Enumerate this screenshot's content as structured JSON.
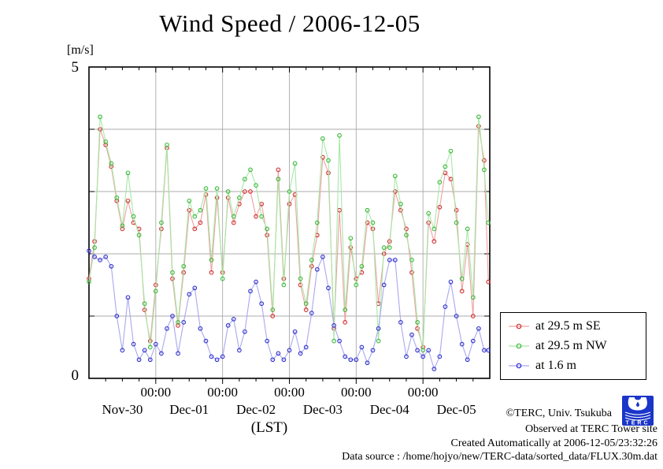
{
  "title": "Wind Speed / 2006-12-05",
  "y_axis": {
    "unit": "[m/s]",
    "max_label": "5",
    "min_label": "0"
  },
  "x_axis": {
    "time_tick_label": "00:00",
    "date_labels": [
      "Nov-30",
      "Dec-01",
      "Dec-02",
      "Dec-03",
      "Dec-04",
      "Dec-05"
    ],
    "axis_label": "(LST)"
  },
  "annotations": {
    "copyright": "©TERC, Univ. Tsukuba",
    "observed": "Observed at TERC Tower site",
    "created": "Created Automatically at 2006-12-05/23:32:26",
    "data_source": "Data source : /home/hojyo/new/TERC-data/sorted_data/FLUX.30m.dat",
    "logo_text": "TERC",
    "logo_color": "#1a35c8"
  },
  "chart_data": {
    "type": "line",
    "title": "Wind Speed / 2006-12-05",
    "ylabel": "[m/s]",
    "xlabel": "(LST)",
    "ylim": [
      0,
      5
    ],
    "xlim_hours": [
      0,
      144
    ],
    "x_epoch": "2006-11-30 00:00 LST",
    "grid": true,
    "grid_color": "#ababab",
    "legend_position": "outside-right-bottom",
    "y_gridlines": [
      1,
      2,
      3,
      4
    ],
    "y_tick_labels_shown": [
      "0",
      "5"
    ],
    "x_major_ticks_hours": [
      24,
      48,
      72,
      96,
      120
    ],
    "x_minor_tick_interval_hours": 6,
    "x_major_tick_text": "00:00",
    "date_label_noon_hours": [
      12,
      36,
      60,
      84,
      108,
      132
    ],
    "x": [
      0,
      2,
      4,
      6,
      8,
      10,
      12,
      14,
      16,
      18,
      20,
      22,
      24,
      26,
      28,
      30,
      32,
      34,
      36,
      38,
      40,
      42,
      44,
      46,
      48,
      50,
      52,
      54,
      56,
      58,
      60,
      62,
      64,
      66,
      68,
      70,
      72,
      74,
      76,
      78,
      80,
      82,
      84,
      86,
      88,
      90,
      92,
      94,
      96,
      98,
      100,
      102,
      104,
      106,
      108,
      110,
      112,
      114,
      116,
      118,
      120,
      122,
      124,
      126,
      128,
      130,
      132,
      134,
      136,
      138,
      140,
      142,
      143.5
    ],
    "series": [
      {
        "name": "at 29.5 m SE",
        "color_line": "#f0a0a0",
        "color_marker": "#d03030",
        "values": [
          1.6,
          2.2,
          4.0,
          3.75,
          3.4,
          2.85,
          2.4,
          2.85,
          2.5,
          2.4,
          1.1,
          0.6,
          1.5,
          2.4,
          3.7,
          1.6,
          0.85,
          1.7,
          2.7,
          2.4,
          2.5,
          2.95,
          1.7,
          2.9,
          1.7,
          2.9,
          2.5,
          2.8,
          3.0,
          3.0,
          2.6,
          2.8,
          2.3,
          1.0,
          3.35,
          1.6,
          2.8,
          2.95,
          1.5,
          1.1,
          1.8,
          2.3,
          3.55,
          3.3,
          0.8,
          2.7,
          0.9,
          2.1,
          1.6,
          1.7,
          2.5,
          2.4,
          1.2,
          2.0,
          2.2,
          3.0,
          2.7,
          2.4,
          1.7,
          0.8,
          0.5,
          2.5,
          2.2,
          2.75,
          3.3,
          3.2,
          2.7,
          1.4,
          2.15,
          1.0,
          4.05,
          3.5,
          1.55
        ]
      },
      {
        "name": "at 29.5 m NW",
        "color_line": "#a6e8a6",
        "color_marker": "#3cb83c",
        "values": [
          1.55,
          2.1,
          4.2,
          3.8,
          3.45,
          2.9,
          2.45,
          3.3,
          2.6,
          2.3,
          1.2,
          0.5,
          1.4,
          2.5,
          3.75,
          1.7,
          0.9,
          1.8,
          2.85,
          2.6,
          2.7,
          3.05,
          1.9,
          3.05,
          1.6,
          3.0,
          2.6,
          2.9,
          3.2,
          3.35,
          3.1,
          2.6,
          2.4,
          1.1,
          3.2,
          1.5,
          3.0,
          3.45,
          1.6,
          1.2,
          1.9,
          2.5,
          3.85,
          3.5,
          0.6,
          3.9,
          1.1,
          2.25,
          1.5,
          1.8,
          2.7,
          2.5,
          0.6,
          2.1,
          2.1,
          3.25,
          2.8,
          2.3,
          1.9,
          0.9,
          0.45,
          2.65,
          2.4,
          3.15,
          3.4,
          3.65,
          2.5,
          1.6,
          2.4,
          1.3,
          4.2,
          3.35,
          2.5
        ]
      },
      {
        "name": "at 1.6 m",
        "color_line": "#a8a8f0",
        "color_marker": "#3030cc",
        "values": [
          2.05,
          1.95,
          1.9,
          1.95,
          1.8,
          1.0,
          0.45,
          1.3,
          0.55,
          0.3,
          0.45,
          0.3,
          0.55,
          0.4,
          0.8,
          1.0,
          0.4,
          0.9,
          1.35,
          1.45,
          0.8,
          0.6,
          0.35,
          0.3,
          0.35,
          0.85,
          0.95,
          0.45,
          0.75,
          1.4,
          1.55,
          1.2,
          0.6,
          0.3,
          0.4,
          0.3,
          0.45,
          0.75,
          0.4,
          0.5,
          1.05,
          1.75,
          1.95,
          1.45,
          0.85,
          0.6,
          0.35,
          0.3,
          0.3,
          0.5,
          0.25,
          0.45,
          0.8,
          1.5,
          1.9,
          1.9,
          0.9,
          0.35,
          0.7,
          0.45,
          0.35,
          0.45,
          0.15,
          0.35,
          1.15,
          1.55,
          1.0,
          0.55,
          0.3,
          0.6,
          0.8,
          0.45,
          0.45
        ]
      }
    ]
  }
}
